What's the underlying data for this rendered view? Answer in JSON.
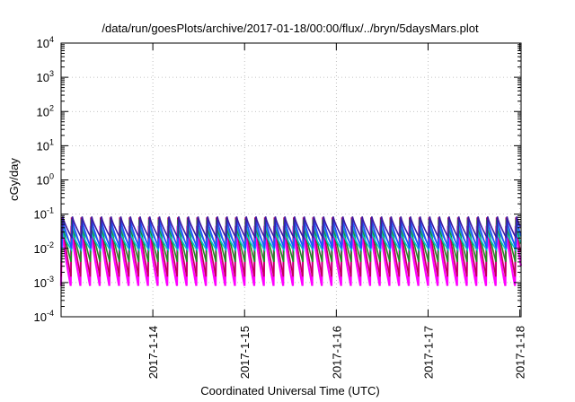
{
  "chart_data": {
    "type": "line",
    "title": "/data/run/goesPlots/archive/2017-01-18/00:00/flux/../bryn/5daysMars.plot",
    "xlabel": "Coordinated Universal Time (UTC)",
    "ylabel": "cGy/day",
    "x_range": [
      "2017-01-13T00:00",
      "2017-01-18T00:20"
    ],
    "y_scale": "log",
    "ylim": [
      0.0001,
      10000
    ],
    "grid": true,
    "y_ticks": [
      {
        "base": "10",
        "exp": "-4"
      },
      {
        "base": "10",
        "exp": "-3"
      },
      {
        "base": "10",
        "exp": "-2"
      },
      {
        "base": "10",
        "exp": "-1"
      },
      {
        "base": "10",
        "exp": "0"
      },
      {
        "base": "10",
        "exp": "1"
      },
      {
        "base": "10",
        "exp": "2"
      },
      {
        "base": "10",
        "exp": "3"
      },
      {
        "base": "10",
        "exp": "4"
      }
    ],
    "x_ticks": [
      "2017-1-14",
      "2017-1-15",
      "2017-1-16",
      "2017-1-17",
      "2017-1-18"
    ],
    "x_tick_days": [
      1,
      2,
      3,
      4,
      5
    ],
    "cycles_per_day": 9.5,
    "series": [
      {
        "color": "#ff00ff",
        "peak": 0.045,
        "trough": 0.0008
      },
      {
        "color": "#c0005a",
        "peak": 0.08,
        "trough": 0.0015
      },
      {
        "color": "#228b22",
        "peak": 0.07,
        "trough": 0.004
      },
      {
        "color": "#1a9ec6",
        "peak": 0.05,
        "trough": 0.012
      },
      {
        "color": "#00c8c8",
        "peak": 0.03,
        "trough": 0.009
      },
      {
        "color": "#2050ff",
        "peak": 0.075,
        "trough": 0.01
      },
      {
        "color": "#3c1aa0",
        "peak": 0.085,
        "trough": 0.02
      }
    ]
  }
}
